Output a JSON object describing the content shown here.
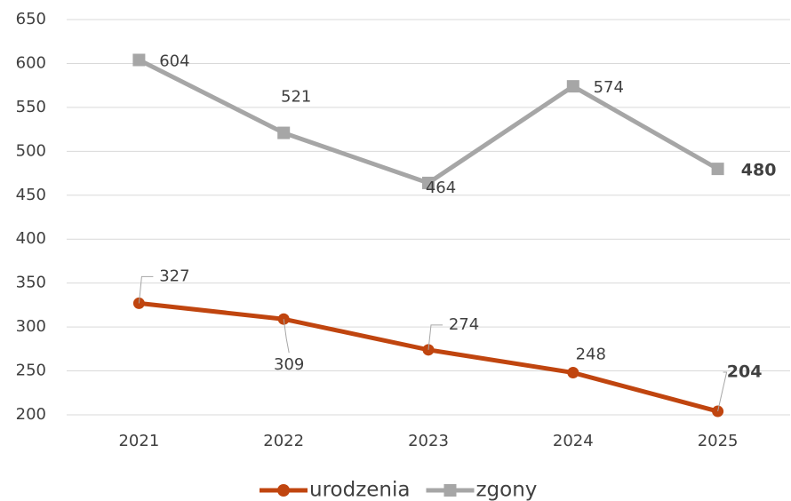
{
  "chart_data": {
    "type": "line",
    "categories": [
      "2021",
      "2022",
      "2023",
      "2024",
      "2025"
    ],
    "series": [
      {
        "name": "urodzenia",
        "color": "#c0450f",
        "values": [
          327,
          309,
          274,
          248,
          204
        ]
      },
      {
        "name": "zgony",
        "color": "#a6a6a6",
        "values": [
          604,
          521,
          464,
          574,
          480
        ]
      }
    ],
    "ylim": [
      200,
      650
    ],
    "yticks": [
      200,
      250,
      300,
      350,
      400,
      450,
      500,
      550,
      600,
      650
    ],
    "grid": true,
    "legend": "bottom"
  }
}
